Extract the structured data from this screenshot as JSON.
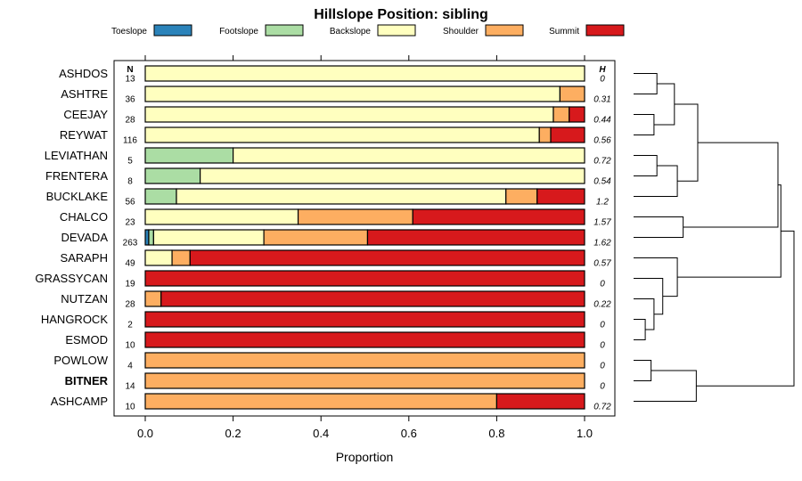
{
  "chart_data": {
    "type": "bar",
    "stacked": true,
    "orientation": "horizontal",
    "title": "Hillslope Position: sibling",
    "xlabel": "Proportion",
    "xlim": [
      0,
      1
    ],
    "x_ticks": [
      "0.0",
      "0.2",
      "0.4",
      "0.6",
      "0.8",
      "1.0"
    ],
    "x_tick_values": [
      0,
      0.2,
      0.4,
      0.6,
      0.8,
      1.0
    ],
    "legend_position": "top",
    "n_header": "N",
    "h_header": "H",
    "categories": [
      "Toeslope",
      "Footslope",
      "Backslope",
      "Shoulder",
      "Summit"
    ],
    "colors": [
      "#2b83ba",
      "#abdda4",
      "#ffffbf",
      "#fdae61",
      "#d7191c"
    ],
    "highlight": "BITNER",
    "rows": [
      {
        "name": "ASHDOS",
        "n": "13",
        "h": "0",
        "values": [
          0,
          0,
          1.0,
          0,
          0
        ]
      },
      {
        "name": "ASHTRE",
        "n": "36",
        "h": "0.31",
        "values": [
          0,
          0,
          0.944,
          0.056,
          0
        ]
      },
      {
        "name": "CEEJAY",
        "n": "28",
        "h": "0.44",
        "values": [
          0,
          0,
          0.929,
          0.036,
          0.035
        ]
      },
      {
        "name": "REYWAT",
        "n": "116",
        "h": "0.56",
        "values": [
          0,
          0,
          0.897,
          0.026,
          0.077
        ]
      },
      {
        "name": "LEVIATHAN",
        "n": "5",
        "h": "0.72",
        "values": [
          0,
          0.2,
          0.8,
          0,
          0
        ]
      },
      {
        "name": "FRENTERA",
        "n": "8",
        "h": "0.54",
        "values": [
          0,
          0.125,
          0.875,
          0,
          0
        ]
      },
      {
        "name": "BUCKLAKE",
        "n": "56",
        "h": "1.2",
        "values": [
          0,
          0.071,
          0.75,
          0.071,
          0.108
        ]
      },
      {
        "name": "CHALCO",
        "n": "23",
        "h": "1.57",
        "values": [
          0,
          0,
          0.348,
          0.261,
          0.391
        ]
      },
      {
        "name": "DEVADA",
        "n": "263",
        "h": "1.62",
        "values": [
          0.008,
          0.011,
          0.251,
          0.236,
          0.494
        ]
      },
      {
        "name": "SARAPH",
        "n": "49",
        "h": "0.57",
        "values": [
          0,
          0,
          0.061,
          0.041,
          0.898
        ]
      },
      {
        "name": "GRASSYCAN",
        "n": "19",
        "h": "0",
        "values": [
          0,
          0,
          0,
          0,
          1.0
        ]
      },
      {
        "name": "NUTZAN",
        "n": "28",
        "h": "0.22",
        "values": [
          0,
          0,
          0,
          0.036,
          0.964
        ]
      },
      {
        "name": "HANGROCK",
        "n": "2",
        "h": "0",
        "values": [
          0,
          0,
          0,
          0,
          1.0
        ]
      },
      {
        "name": "ESMOD",
        "n": "10",
        "h": "0",
        "values": [
          0,
          0,
          0,
          0,
          1.0
        ]
      },
      {
        "name": "POWLOW",
        "n": "4",
        "h": "0",
        "values": [
          0,
          0,
          0,
          1.0,
          0
        ]
      },
      {
        "name": "BITNER",
        "n": "14",
        "h": "0",
        "values": [
          0,
          0,
          0,
          1.0,
          0
        ]
      },
      {
        "name": "ASHCAMP",
        "n": "10",
        "h": "0.72",
        "values": [
          0,
          0,
          0,
          0.8,
          0.2
        ]
      }
    ],
    "dendrogram": {
      "type": "hierarchical-clustering",
      "merges": [
        [
          "ASHDOS",
          "ASHTRE",
          0.16
        ],
        [
          "CEEJAY",
          "REYWAT",
          0.14
        ],
        [
          "m0",
          "m1",
          0.28
        ],
        [
          "LEVIATHAN",
          "FRENTERA",
          0.16
        ],
        [
          "m3",
          "BUCKLAKE",
          0.3
        ],
        [
          "m2",
          "m4",
          0.44
        ],
        [
          "CHALCO",
          "DEVADA",
          0.34
        ],
        [
          "m5",
          "m6",
          0.99
        ],
        [
          "HANGROCK",
          "ESMOD",
          0.08
        ],
        [
          "NUTZAN",
          "m8",
          0.14
        ],
        [
          "GRASSYCAN",
          "m9",
          0.2
        ],
        [
          "SARAPH",
          "m10",
          0.3
        ],
        [
          "m7",
          "m11",
          1.01
        ],
        [
          "POWLOW",
          "BITNER",
          0.12
        ],
        [
          "m13",
          "ASHCAMP",
          0.43
        ],
        [
          "m12",
          "m14",
          1.1
        ]
      ]
    }
  }
}
